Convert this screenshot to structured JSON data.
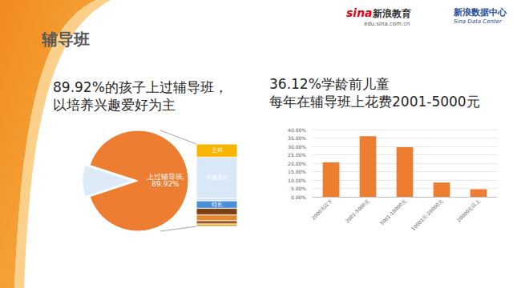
{
  "page": {
    "title": "辅导班",
    "left_heading": [
      "89.92%的孩子上过辅导班，",
      "以培养兴趣爱好为主"
    ],
    "right_heading": [
      "36.12%学龄前儿童",
      "每年在辅导班上花费2001-5000元"
    ],
    "logos": [
      {
        "brand": "sina",
        "name": "新浪教育",
        "sub": "edu.sina.com.cn"
      },
      {
        "name": "新浪数据中心",
        "sub": "Sina Data Center"
      }
    ]
  },
  "chart_data": [
    {
      "type": "pie",
      "categories": [
        "上过辅导班",
        null
      ],
      "values": [
        89.92,
        10.08
      ],
      "value_labels": [
        "上过辅导班,\n89.92%",
        null
      ],
      "data_labels": true,
      "colors": [
        "#ed7d31",
        "#ddebf7"
      ]
    },
    {
      "type": "bar",
      "stacked": true,
      "tick_labels": false,
      "categories": [
        null
      ],
      "series": [
        {
          "name": null,
          "color": "#d4a72c",
          "values": [
            3
          ]
        },
        {
          "name": null,
          "color": "#9c5b24",
          "values": [
            4
          ]
        },
        {
          "name": null,
          "color": "#e8862c",
          "values": [
            7
          ]
        },
        {
          "name": null,
          "color": "#7b3f14",
          "values": [
            8
          ]
        },
        {
          "name": "特长",
          "color": "#4a8fd6",
          "values": [
            9
          ]
        },
        {
          "name": null,
          "color": "#cfe2f3",
          "values": [
            3
          ]
        },
        {
          "name": "兴趣爱好",
          "color": "#d9e8f7",
          "values": [
            50
          ]
        },
        {
          "name": "主科",
          "color": "#f7b500",
          "values": [
            16
          ]
        }
      ],
      "ylim": [
        0,
        100
      ]
    },
    {
      "type": "bar",
      "categories": [
        "2000元以下",
        "2001-5000元",
        "5001-10000元",
        "10001元-20000元",
        "20000元以上"
      ],
      "values": [
        20.5,
        36.12,
        29.5,
        8.5,
        4.5
      ],
      "color": "#ed7d31",
      "ylim": [
        0,
        40
      ],
      "yticks": [
        {
          "value": 0,
          "label": "0.00%"
        },
        {
          "value": 5,
          "label": "5.00%"
        },
        {
          "value": 10,
          "label": "10.00%"
        },
        {
          "value": 15,
          "label": "15.00%"
        },
        {
          "value": 20,
          "label": "20.00%"
        },
        {
          "value": 25,
          "label": "25.00%"
        },
        {
          "value": 30,
          "label": "30.00%"
        },
        {
          "value": 35,
          "label": "35.00%"
        },
        {
          "value": 40,
          "label": "40.00%"
        }
      ],
      "grid": true
    }
  ]
}
